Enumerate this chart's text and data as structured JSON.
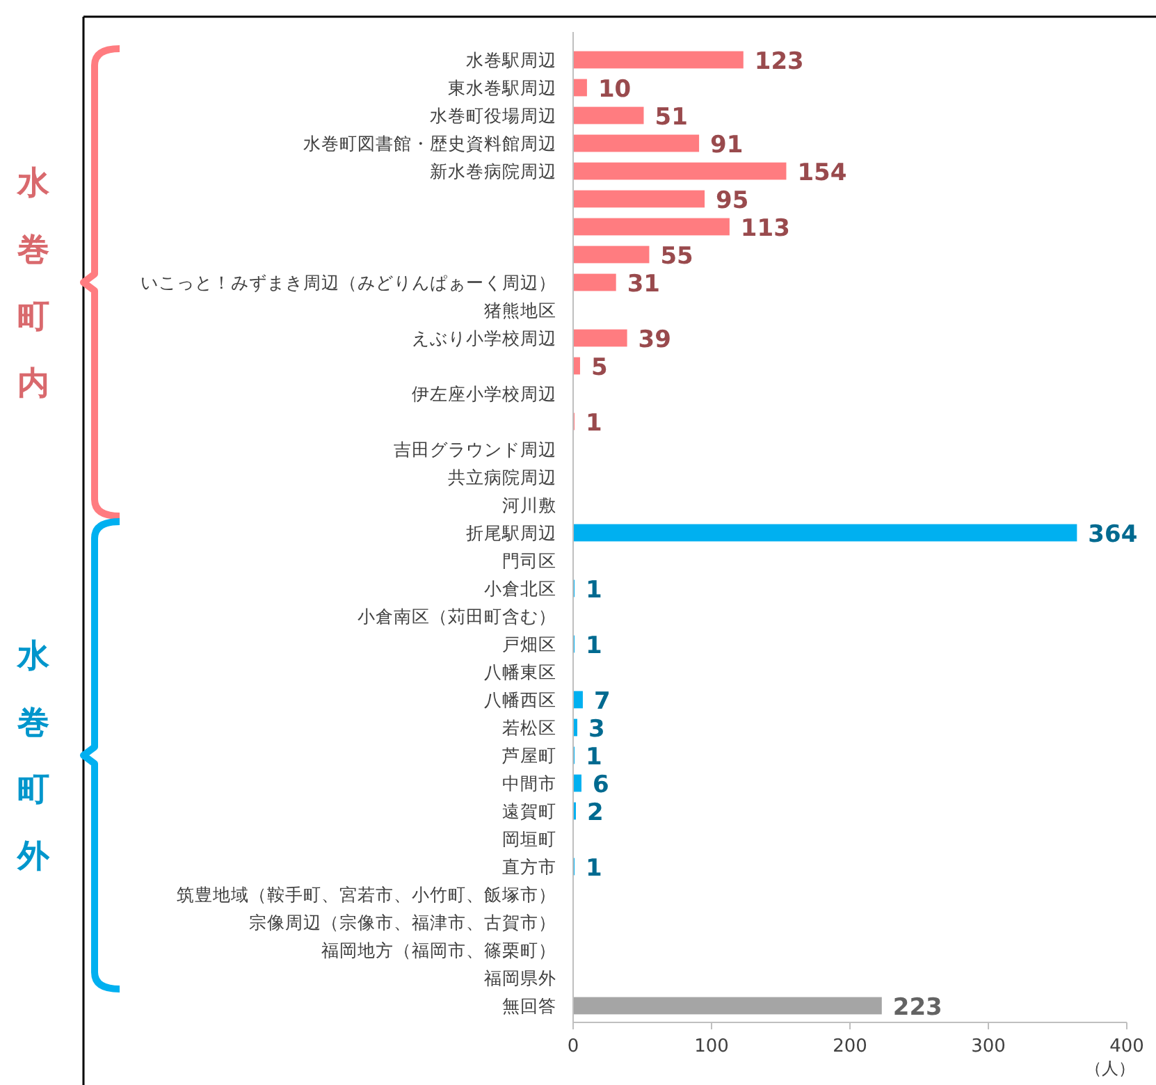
{
  "chart_data": {
    "type": "bar",
    "orientation": "horizontal",
    "xlabel": "（人）",
    "xlim": [
      0,
      400
    ],
    "xticks": [
      0,
      100,
      200,
      300,
      400
    ],
    "data_labels": true,
    "categories": [
      "水巻駅周辺",
      "東水巻駅周辺",
      "水巻町役場周辺",
      "水巻町図書館・歴史資料館周辺",
      "新水巻病院周辺",
      null,
      null,
      null,
      "いこっと！みずまき周辺（みどりんぱぁーく周辺）",
      "猪熊地区",
      "えぶり小学校周辺",
      null,
      "伊左座小学校周辺",
      null,
      "吉田グラウンド周辺",
      "共立病院周辺",
      "河川敷",
      "折尾駅周辺",
      "門司区",
      "小倉北区",
      "小倉南区（苅田町含む）",
      "戸畑区",
      "八幡東区",
      "八幡西区",
      "若松区",
      "芦屋町",
      "中間市",
      "遠賀町",
      "岡垣町",
      "直方市",
      "筑豊地域（鞍手町、宮若市、小竹町、飯塚市）",
      "宗像周辺（宗像市、福津市、古賀市）",
      "福岡地方（福岡市、篠栗町）",
      "福岡県外",
      "無回答"
    ],
    "series": [
      {
        "color": "#ff7c80",
        "values": [
          123,
          10,
          51,
          91,
          154,
          95,
          113,
          55,
          31,
          0,
          39,
          5,
          0,
          1,
          0,
          0,
          0,
          null,
          null,
          null,
          null,
          null,
          null,
          null,
          null,
          null,
          null,
          null,
          null,
          null,
          null,
          null,
          null,
          null,
          null
        ],
        "value_labels": [
          "123",
          "10",
          "51",
          "91",
          "154",
          "95",
          "113",
          "55",
          "31",
          null,
          "39",
          "5",
          null,
          "1",
          null,
          null,
          null,
          null,
          null,
          null,
          null,
          null,
          null,
          null,
          null,
          null,
          null,
          null,
          null,
          null,
          null,
          null,
          null,
          null,
          null
        ]
      },
      {
        "color": "#00b0f0",
        "values": [
          null,
          null,
          null,
          null,
          null,
          null,
          null,
          null,
          null,
          null,
          null,
          null,
          null,
          null,
          null,
          null,
          null,
          364,
          0,
          1,
          0,
          1,
          0,
          7,
          3,
          1,
          6,
          2,
          0,
          1,
          0,
          0,
          0,
          0,
          null
        ],
        "value_labels": [
          null,
          null,
          null,
          null,
          null,
          null,
          null,
          null,
          null,
          null,
          null,
          null,
          null,
          null,
          null,
          null,
          null,
          "364",
          null,
          "1",
          null,
          "1",
          null,
          "7",
          "3",
          "1",
          "6",
          "2",
          null,
          "1",
          null,
          null,
          null,
          null,
          null
        ]
      },
      {
        "color": "#a5a5a5",
        "values": [
          null,
          null,
          null,
          null,
          null,
          null,
          null,
          null,
          null,
          null,
          null,
          null,
          null,
          null,
          null,
          null,
          null,
          null,
          null,
          null,
          null,
          null,
          null,
          null,
          null,
          null,
          null,
          null,
          null,
          null,
          null,
          null,
          null,
          null,
          223
        ],
        "value_labels": [
          null,
          null,
          null,
          null,
          null,
          null,
          null,
          null,
          null,
          null,
          null,
          null,
          null,
          null,
          null,
          null,
          null,
          null,
          null,
          null,
          null,
          null,
          null,
          null,
          null,
          null,
          null,
          null,
          null,
          null,
          null,
          null,
          null,
          null,
          "223"
        ]
      }
    ],
    "annotations": [
      "水巻町内",
      "水巻町外"
    ]
  }
}
